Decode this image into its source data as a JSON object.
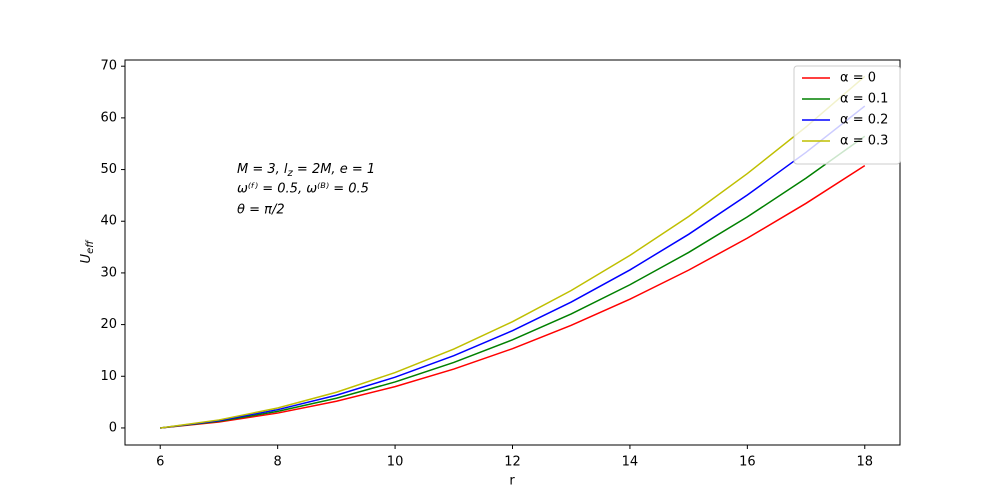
{
  "chart_data": {
    "type": "line",
    "xlabel": "r",
    "ylabel": "U",
    "ylabel_sub": "eff",
    "annotations": [
      "M = 3,  l",
      "z",
      " = 2M,  e = 1",
      "ω⁽ᶠ⁾ = 0.5, ω⁽ᴮ⁾ = 0.5",
      "θ = π/2"
    ],
    "x": [
      6,
      7,
      8,
      9,
      10,
      11,
      12,
      13,
      14,
      15,
      16,
      17,
      18
    ],
    "series": [
      {
        "name": "α = 0",
        "color": "#ff0000",
        "values": [
          0,
          1.16,
          2.88,
          5.16,
          8.0,
          11.39,
          15.34,
          19.85,
          24.92,
          30.54,
          36.73,
          43.47,
          50.76
        ]
      },
      {
        "name": "α = 0.1",
        "color": "#008000",
        "values": [
          0,
          1.29,
          3.2,
          5.74,
          8.9,
          12.67,
          17.06,
          22.07,
          27.71,
          33.96,
          40.84,
          48.34,
          56.45
        ]
      },
      {
        "name": "α = 0.2",
        "color": "#0000ff",
        "values": [
          0,
          1.42,
          3.53,
          6.33,
          9.82,
          13.98,
          18.82,
          24.36,
          30.58,
          37.47,
          45.07,
          53.34,
          62.28
        ]
      },
      {
        "name": "α = 0.3",
        "color": "#bfbf00",
        "values": [
          0,
          1.55,
          3.86,
          6.91,
          10.72,
          15.26,
          20.56,
          26.6,
          33.39,
          40.92,
          49.22,
          58.25,
          68.02
        ]
      }
    ],
    "xlim": [
      5.4,
      18.6
    ],
    "xticks": [
      6,
      8,
      10,
      12,
      14,
      16,
      18
    ],
    "ylim": [
      -3.3,
      71.2
    ],
    "yticks": [
      0,
      10,
      20,
      30,
      40,
      50,
      60,
      70
    ],
    "legend": "upper right",
    "grid": false
  }
}
